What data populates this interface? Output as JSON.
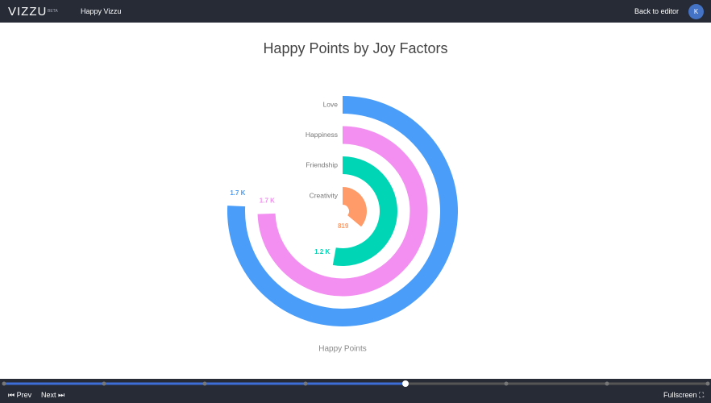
{
  "header": {
    "logo": "VIZZU",
    "badge": "BETA",
    "project": "Happy Vizzu",
    "back": "Back to editor",
    "avatar": "K"
  },
  "chart_data": {
    "type": "radial-bar",
    "title": "Happy Points by Joy Factors",
    "categories": [
      "Love",
      "Happiness",
      "Friendship",
      "Creativity"
    ],
    "values": [
      1720,
      1690,
      1200,
      819
    ],
    "value_labels": [
      "1.7 K",
      "1.7 K",
      "1.2 K",
      "819"
    ],
    "colors": [
      "#4a9df8",
      "#f28ff0",
      "#00d5b5",
      "#fe9b68"
    ],
    "x_label": "Happy Points",
    "xlim": [
      0,
      2270
    ]
  },
  "footer": {
    "prev": "Prev",
    "next": "Next",
    "fullscreen": "Fullscreen"
  }
}
